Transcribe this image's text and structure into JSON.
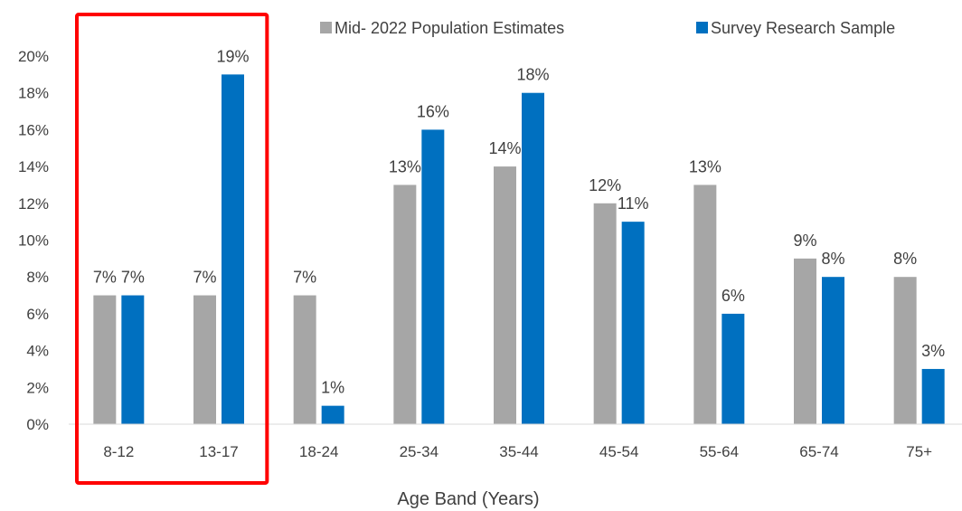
{
  "chart_data": {
    "type": "bar",
    "categories": [
      "8-12",
      "13-17",
      "18-24",
      "25-34",
      "35-44",
      "45-54",
      "55-64",
      "65-74",
      "75+"
    ],
    "series": [
      {
        "name": "Mid- 2022 Population Estimates",
        "color": "#a6a6a6",
        "values": [
          7,
          7,
          7,
          13,
          14,
          12,
          13,
          9,
          8
        ],
        "labels": [
          "7%",
          "7%",
          "7%",
          "13%",
          "14%",
          "12%",
          "13%",
          "9%",
          "8%"
        ]
      },
      {
        "name": "Survey Research Sample",
        "color": "#0070c0",
        "values": [
          7,
          19,
          1,
          16,
          18,
          11,
          6,
          8,
          3
        ],
        "labels": [
          "7%",
          "19%",
          "1%",
          "16%",
          "18%",
          "11%",
          "6%",
          "8%",
          "3%"
        ]
      }
    ],
    "xlabel": "Age Band (Years)",
    "ylabel": "",
    "ylim": [
      0,
      20
    ],
    "y_ticks": [
      "0%",
      "2%",
      "4%",
      "6%",
      "8%",
      "10%",
      "12%",
      "14%",
      "16%",
      "18%",
      "20%"
    ],
    "grid": false,
    "legend": "top-right",
    "highlight": {
      "categories": [
        "8-12",
        "13-17"
      ],
      "color": "#ff0000"
    }
  }
}
